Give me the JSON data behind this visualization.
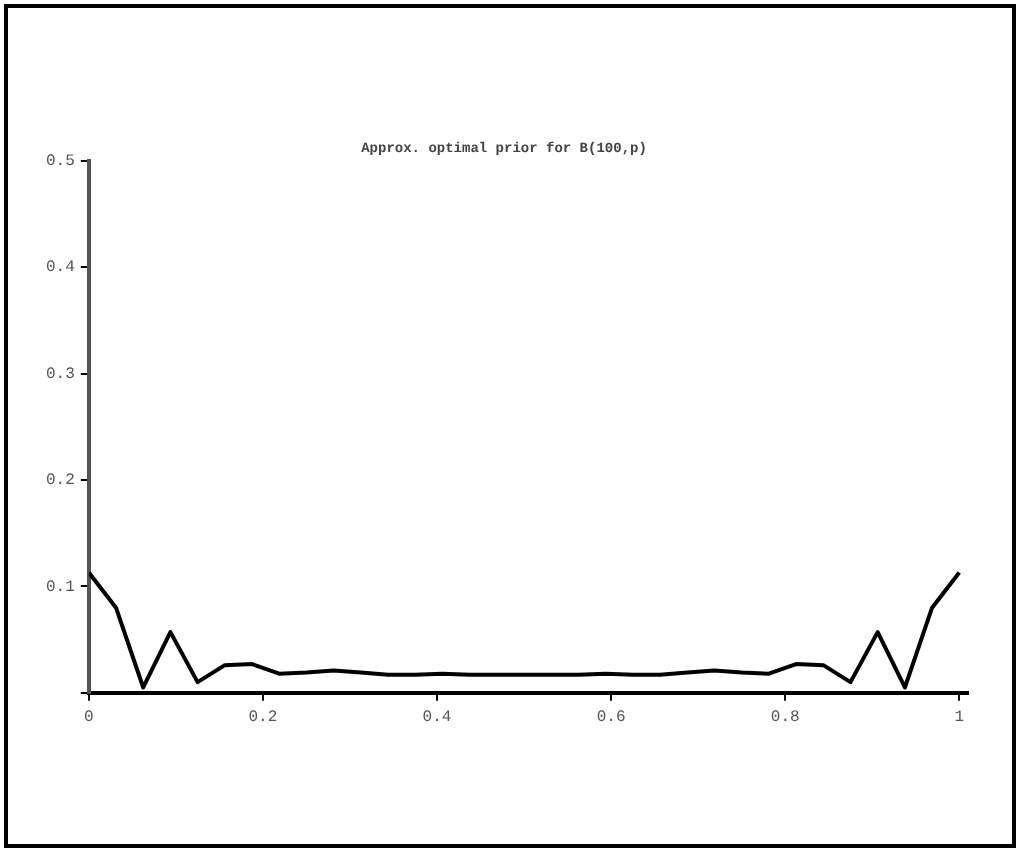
{
  "chart_data": {
    "type": "line",
    "title": "Approx. optimal prior for B(100,p)",
    "x": [
      0,
      0.03125,
      0.0625,
      0.09375,
      0.125,
      0.15625,
      0.1875,
      0.21875,
      0.25,
      0.28125,
      0.3125,
      0.34375,
      0.375,
      0.40625,
      0.4375,
      0.46875,
      0.5,
      0.53125,
      0.5625,
      0.59375,
      0.625,
      0.65625,
      0.6875,
      0.71875,
      0.75,
      0.78125,
      0.8125,
      0.84375,
      0.875,
      0.90625,
      0.9375,
      0.96875,
      1
    ],
    "series": [
      {
        "color": "#000000",
        "values": [
          0.113,
          0.08,
          0.005,
          0.057,
          0.01,
          0.026,
          0.027,
          0.018,
          0.019,
          0.021,
          0.019,
          0.017,
          0.017,
          0.018,
          0.017,
          0.017,
          0.017,
          0.017,
          0.017,
          0.018,
          0.017,
          0.017,
          0.019,
          0.021,
          0.019,
          0.018,
          0.027,
          0.026,
          0.01,
          0.057,
          0.005,
          0.08,
          0.113
        ]
      }
    ],
    "xlim": [
      0,
      1.01
    ],
    "ylim": [
      0,
      0.5
    ],
    "xticks": [
      0,
      0.2,
      0.4,
      0.6,
      0.8,
      1
    ],
    "yticks": [
      {
        "value": 0,
        "label": null
      },
      0.1,
      0.2,
      0.3,
      0.4,
      0.5
    ],
    "grid": false,
    "legend": false,
    "marker": "none",
    "line_style": "solid"
  }
}
